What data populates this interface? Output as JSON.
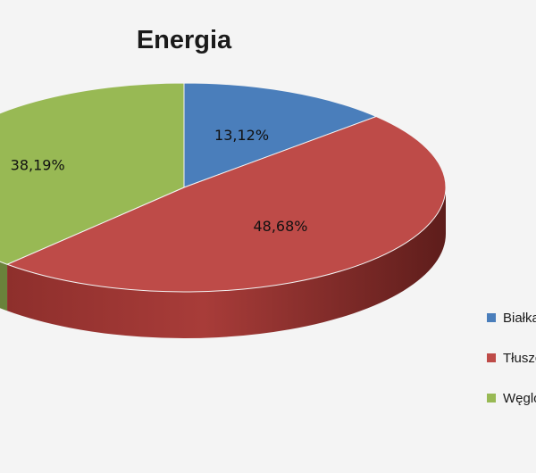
{
  "chart_data": {
    "type": "pie",
    "title": "Energia",
    "slices": [
      {
        "label": "Białka",
        "value": 13.12,
        "value_label": "13,12%",
        "color": "#4a7ebb"
      },
      {
        "label": "Tłuszcze",
        "value": 48.68,
        "value_label": "48,68%",
        "color": "#be4b48"
      },
      {
        "label": "Węglowodany",
        "value": 38.19,
        "value_label": "38,19%",
        "color": "#98b954"
      }
    ],
    "legend_position": "right",
    "style": "3d"
  }
}
